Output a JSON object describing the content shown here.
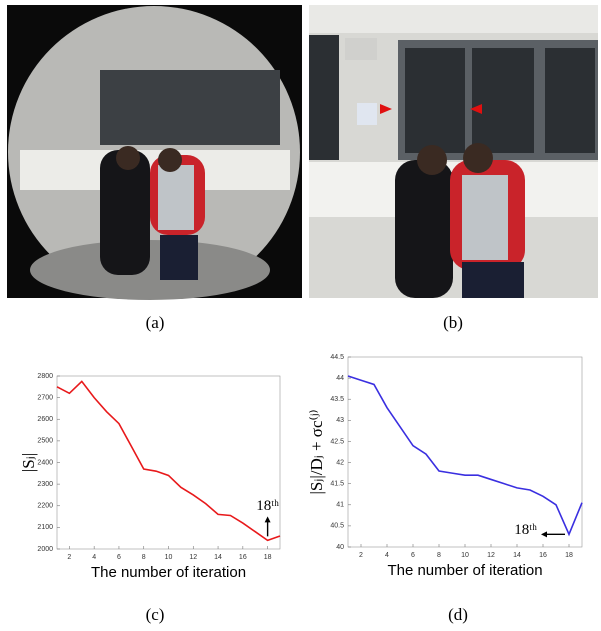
{
  "captions": [
    "(a)",
    "(b)",
    "(c)",
    "(d)"
  ],
  "chart_data": [
    {
      "type": "line",
      "ylabel": "|Sⱼ|",
      "xlabel": "The number of iteration",
      "annotation": "18ᵗʰ",
      "x": [
        1,
        2,
        3,
        4,
        5,
        6,
        7,
        8,
        9,
        10,
        11,
        12,
        13,
        14,
        15,
        16,
        17,
        18,
        19
      ],
      "series": [
        {
          "color": "#e8191b",
          "values": [
            2750,
            2720,
            2775,
            2700,
            2635,
            2580,
            2475,
            2370,
            2360,
            2340,
            2285,
            2250,
            2210,
            2160,
            2155,
            2120,
            2080,
            2040,
            2060
          ]
        }
      ],
      "xlim": [
        1,
        19
      ],
      "xticks": [
        2,
        4,
        6,
        8,
        10,
        12,
        14,
        16,
        18
      ],
      "ylim": [
        2000,
        2800
      ],
      "yticks": [
        2000,
        2100,
        2200,
        2300,
        2400,
        2500,
        2600,
        2700,
        2800
      ]
    },
    {
      "type": "line",
      "ylabel": "|Sⱼ|/Dⱼ + σc⁽ʲ⁾",
      "xlabel": "The number of iteration",
      "annotation": "18ᵗʰ",
      "x": [
        1,
        2,
        3,
        4,
        5,
        6,
        7,
        8,
        9,
        10,
        11,
        12,
        13,
        14,
        15,
        16,
        17,
        18,
        19
      ],
      "series": [
        {
          "color": "#3a2fe0",
          "values": [
            44.05,
            43.95,
            43.85,
            43.3,
            42.85,
            42.4,
            42.2,
            41.8,
            41.75,
            41.7,
            41.7,
            41.6,
            41.5,
            41.4,
            41.35,
            41.2,
            41.0,
            40.3,
            41.05
          ]
        }
      ],
      "xlim": [
        1,
        19
      ],
      "xticks": [
        2,
        4,
        6,
        8,
        10,
        12,
        14,
        16,
        18
      ],
      "ylim": [
        40,
        44.5
      ],
      "yticks": [
        40,
        40.5,
        41,
        41.5,
        42,
        42.5,
        43,
        43.5,
        44,
        44.5
      ]
    }
  ]
}
